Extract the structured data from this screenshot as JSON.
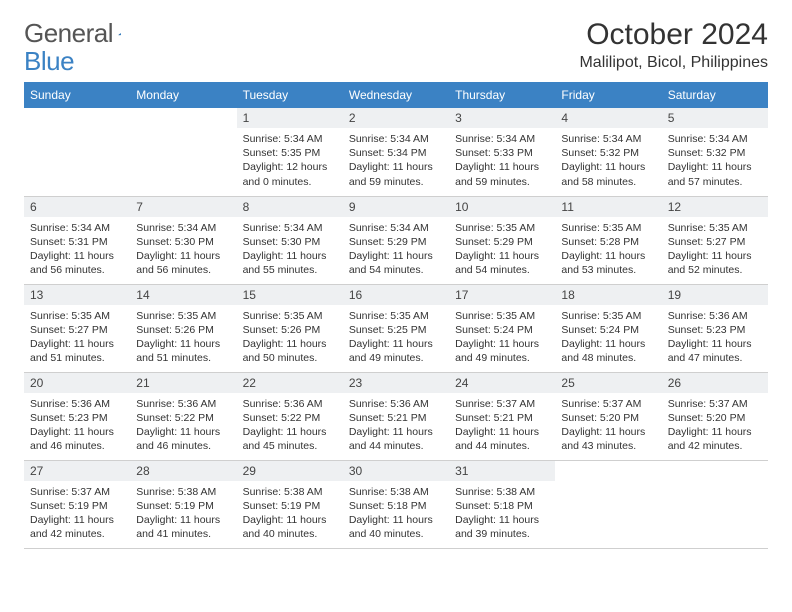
{
  "logo": {
    "word1": "General",
    "word2": "Blue"
  },
  "title": "October 2024",
  "location": "Malilipot, Bicol, Philippines",
  "colors": {
    "header_bg": "#3b82c4",
    "header_text": "#ffffff",
    "daynum_bg": "#eef0f2",
    "border": "#cfcfcf",
    "body_text": "#333333",
    "logo_gray": "#555555",
    "logo_blue": "#3b82c4"
  },
  "dayHeaders": [
    "Sunday",
    "Monday",
    "Tuesday",
    "Wednesday",
    "Thursday",
    "Friday",
    "Saturday"
  ],
  "weeks": [
    [
      null,
      null,
      {
        "n": "1",
        "sr": "5:34 AM",
        "ss": "5:35 PM",
        "dl": "12 hours and 0 minutes."
      },
      {
        "n": "2",
        "sr": "5:34 AM",
        "ss": "5:34 PM",
        "dl": "11 hours and 59 minutes."
      },
      {
        "n": "3",
        "sr": "5:34 AM",
        "ss": "5:33 PM",
        "dl": "11 hours and 59 minutes."
      },
      {
        "n": "4",
        "sr": "5:34 AM",
        "ss": "5:32 PM",
        "dl": "11 hours and 58 minutes."
      },
      {
        "n": "5",
        "sr": "5:34 AM",
        "ss": "5:32 PM",
        "dl": "11 hours and 57 minutes."
      }
    ],
    [
      {
        "n": "6",
        "sr": "5:34 AM",
        "ss": "5:31 PM",
        "dl": "11 hours and 56 minutes."
      },
      {
        "n": "7",
        "sr": "5:34 AM",
        "ss": "5:30 PM",
        "dl": "11 hours and 56 minutes."
      },
      {
        "n": "8",
        "sr": "5:34 AM",
        "ss": "5:30 PM",
        "dl": "11 hours and 55 minutes."
      },
      {
        "n": "9",
        "sr": "5:34 AM",
        "ss": "5:29 PM",
        "dl": "11 hours and 54 minutes."
      },
      {
        "n": "10",
        "sr": "5:35 AM",
        "ss": "5:29 PM",
        "dl": "11 hours and 54 minutes."
      },
      {
        "n": "11",
        "sr": "5:35 AM",
        "ss": "5:28 PM",
        "dl": "11 hours and 53 minutes."
      },
      {
        "n": "12",
        "sr": "5:35 AM",
        "ss": "5:27 PM",
        "dl": "11 hours and 52 minutes."
      }
    ],
    [
      {
        "n": "13",
        "sr": "5:35 AM",
        "ss": "5:27 PM",
        "dl": "11 hours and 51 minutes."
      },
      {
        "n": "14",
        "sr": "5:35 AM",
        "ss": "5:26 PM",
        "dl": "11 hours and 51 minutes."
      },
      {
        "n": "15",
        "sr": "5:35 AM",
        "ss": "5:26 PM",
        "dl": "11 hours and 50 minutes."
      },
      {
        "n": "16",
        "sr": "5:35 AM",
        "ss": "5:25 PM",
        "dl": "11 hours and 49 minutes."
      },
      {
        "n": "17",
        "sr": "5:35 AM",
        "ss": "5:24 PM",
        "dl": "11 hours and 49 minutes."
      },
      {
        "n": "18",
        "sr": "5:35 AM",
        "ss": "5:24 PM",
        "dl": "11 hours and 48 minutes."
      },
      {
        "n": "19",
        "sr": "5:36 AM",
        "ss": "5:23 PM",
        "dl": "11 hours and 47 minutes."
      }
    ],
    [
      {
        "n": "20",
        "sr": "5:36 AM",
        "ss": "5:23 PM",
        "dl": "11 hours and 46 minutes."
      },
      {
        "n": "21",
        "sr": "5:36 AM",
        "ss": "5:22 PM",
        "dl": "11 hours and 46 minutes."
      },
      {
        "n": "22",
        "sr": "5:36 AM",
        "ss": "5:22 PM",
        "dl": "11 hours and 45 minutes."
      },
      {
        "n": "23",
        "sr": "5:36 AM",
        "ss": "5:21 PM",
        "dl": "11 hours and 44 minutes."
      },
      {
        "n": "24",
        "sr": "5:37 AM",
        "ss": "5:21 PM",
        "dl": "11 hours and 44 minutes."
      },
      {
        "n": "25",
        "sr": "5:37 AM",
        "ss": "5:20 PM",
        "dl": "11 hours and 43 minutes."
      },
      {
        "n": "26",
        "sr": "5:37 AM",
        "ss": "5:20 PM",
        "dl": "11 hours and 42 minutes."
      }
    ],
    [
      {
        "n": "27",
        "sr": "5:37 AM",
        "ss": "5:19 PM",
        "dl": "11 hours and 42 minutes."
      },
      {
        "n": "28",
        "sr": "5:38 AM",
        "ss": "5:19 PM",
        "dl": "11 hours and 41 minutes."
      },
      {
        "n": "29",
        "sr": "5:38 AM",
        "ss": "5:19 PM",
        "dl": "11 hours and 40 minutes."
      },
      {
        "n": "30",
        "sr": "5:38 AM",
        "ss": "5:18 PM",
        "dl": "11 hours and 40 minutes."
      },
      {
        "n": "31",
        "sr": "5:38 AM",
        "ss": "5:18 PM",
        "dl": "11 hours and 39 minutes."
      },
      null,
      null
    ]
  ],
  "labels": {
    "sunrise": "Sunrise: ",
    "sunset": "Sunset: ",
    "daylight": "Daylight: "
  }
}
